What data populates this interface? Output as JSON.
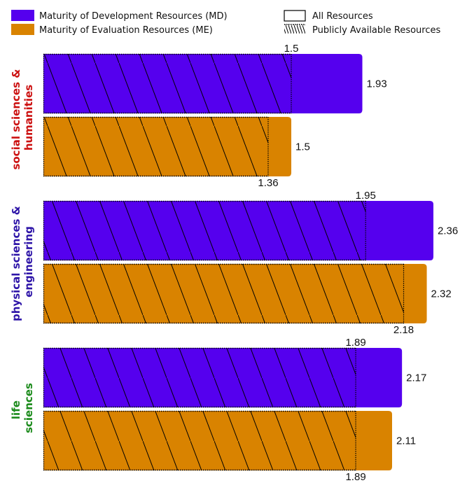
{
  "chart_data": {
    "type": "bar",
    "orientation": "horizontal",
    "categories": [
      "social sciences & humanities",
      "physical sciences & engineering",
      "life sciences"
    ],
    "category_colors": [
      "#cc1111",
      "#2e15a8",
      "#1a8a1a"
    ],
    "series": [
      {
        "name": "Maturity of Development Resources (MD)",
        "color": "#5500ee",
        "values": [
          1.93,
          2.36,
          2.17
        ],
        "public_values": [
          1.5,
          1.95,
          1.89
        ]
      },
      {
        "name": "Maturity of Evaluation Resources (ME)",
        "color": "#d98300",
        "values": [
          1.5,
          2.32,
          2.11
        ],
        "public_values": [
          1.36,
          2.18,
          1.89
        ]
      }
    ],
    "pattern_legend": [
      "All Resources",
      "Publicly Available Resources"
    ],
    "xlim": [
      0,
      2.36
    ],
    "axes_visible": false,
    "grid": false,
    "legend_placement": "top"
  }
}
